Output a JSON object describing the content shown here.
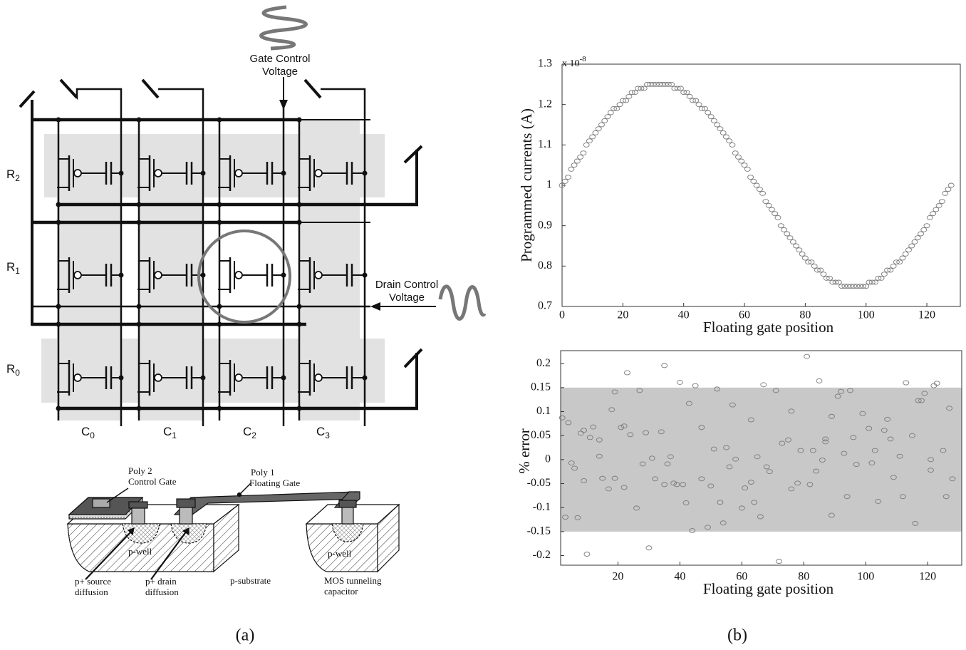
{
  "figure_a": {
    "gate_label": [
      "Gate Control",
      "Voltage"
    ],
    "drain_label": [
      "Drain Control",
      "Voltage"
    ],
    "rows": [
      {
        "name": "R",
        "sub": "2"
      },
      {
        "name": "R",
        "sub": "1"
      },
      {
        "name": "R",
        "sub": "0"
      }
    ],
    "columns": [
      {
        "name": "C",
        "sub": "0"
      },
      {
        "name": "C",
        "sub": "1"
      },
      {
        "name": "C",
        "sub": "2"
      },
      {
        "name": "C",
        "sub": "3"
      }
    ],
    "cross_section": {
      "poly2": [
        "Poly 2",
        "Control Gate"
      ],
      "poly1": [
        "Poly 1",
        "Floating Gate"
      ],
      "wells": [
        "p-well",
        "p-well"
      ],
      "substrate": "p-substrate",
      "source": [
        "p+ source",
        "diffusion"
      ],
      "drain": [
        "p+ drain",
        "diffusion"
      ],
      "capacitor": [
        "MOS tunneling",
        "capacitor"
      ]
    },
    "caption": "(a)"
  },
  "caption_b": "(b)",
  "chart_data": [
    {
      "type": "scatter",
      "ylabel": "Programmed currents (A)",
      "xlabel": "Floating gate position",
      "y_scale_label": {
        "base": "x 10",
        "exponent": "-8"
      },
      "color": "#7a7a7a",
      "xlim": [
        0,
        131
      ],
      "ylim": [
        0.7,
        1.3
      ],
      "xticks": [
        0,
        20,
        40,
        60,
        80,
        100,
        120
      ],
      "yticks": [
        0.7,
        0.8,
        0.9,
        1,
        1.1,
        1.2,
        1.3
      ],
      "x": [
        0,
        1,
        2,
        3,
        4,
        5,
        6,
        7,
        8,
        9,
        10,
        11,
        12,
        13,
        14,
        15,
        16,
        17,
        18,
        19,
        20,
        21,
        22,
        23,
        24,
        25,
        26,
        27,
        28,
        29,
        30,
        31,
        32,
        33,
        34,
        35,
        36,
        37,
        38,
        39,
        40,
        41,
        42,
        43,
        44,
        45,
        46,
        47,
        48,
        49,
        50,
        51,
        52,
        53,
        54,
        55,
        56,
        57,
        58,
        59,
        60,
        61,
        62,
        63,
        64,
        65,
        66,
        67,
        68,
        69,
        70,
        71,
        72,
        73,
        74,
        75,
        76,
        77,
        78,
        79,
        80,
        81,
        82,
        83,
        84,
        85,
        86,
        87,
        88,
        89,
        90,
        91,
        92,
        93,
        94,
        95,
        96,
        97,
        98,
        99,
        100,
        101,
        102,
        103,
        104,
        105,
        106,
        107,
        108,
        109,
        110,
        111,
        112,
        113,
        114,
        115,
        116,
        117,
        118,
        119,
        120,
        121,
        122,
        123,
        124,
        125,
        126,
        127,
        128
      ],
      "values": [
        1.0,
        1.01,
        1.02,
        1.04,
        1.05,
        1.06,
        1.07,
        1.08,
        1.1,
        1.11,
        1.12,
        1.13,
        1.14,
        1.15,
        1.16,
        1.17,
        1.18,
        1.19,
        1.19,
        1.2,
        1.21,
        1.21,
        1.22,
        1.23,
        1.23,
        1.24,
        1.24,
        1.24,
        1.25,
        1.25,
        1.25,
        1.25,
        1.25,
        1.25,
        1.25,
        1.25,
        1.25,
        1.24,
        1.24,
        1.24,
        1.23,
        1.23,
        1.22,
        1.21,
        1.21,
        1.2,
        1.19,
        1.19,
        1.18,
        1.17,
        1.16,
        1.15,
        1.14,
        1.13,
        1.12,
        1.11,
        1.1,
        1.08,
        1.07,
        1.06,
        1.05,
        1.04,
        1.02,
        1.01,
        1.0,
        0.99,
        0.98,
        0.96,
        0.95,
        0.94,
        0.93,
        0.92,
        0.9,
        0.89,
        0.88,
        0.87,
        0.86,
        0.85,
        0.84,
        0.83,
        0.82,
        0.81,
        0.81,
        0.8,
        0.79,
        0.79,
        0.78,
        0.77,
        0.77,
        0.76,
        0.76,
        0.76,
        0.75,
        0.75,
        0.75,
        0.75,
        0.75,
        0.75,
        0.75,
        0.75,
        0.75,
        0.76,
        0.76,
        0.76,
        0.77,
        0.77,
        0.78,
        0.79,
        0.79,
        0.8,
        0.81,
        0.81,
        0.82,
        0.83,
        0.84,
        0.85,
        0.86,
        0.87,
        0.88,
        0.89,
        0.9,
        0.92,
        0.93,
        0.94,
        0.95,
        0.96,
        0.98,
        0.99,
        1.0
      ]
    },
    {
      "type": "scatter",
      "ylabel": "% error",
      "xlabel": "Floating gate position",
      "color": "#7a7a7a",
      "band": [
        -0.15,
        0.15
      ],
      "band_color": "#c8c8c8",
      "xlim": [
        1.5,
        131
      ],
      "ylim": [
        -0.22,
        0.227
      ],
      "xticks": [
        20,
        40,
        60,
        80,
        100,
        120
      ],
      "yticks": [
        -0.2,
        -0.15,
        -0.1,
        -0.05,
        0,
        0.05,
        0.1,
        0.15,
        0.2
      ],
      "x": [
        2,
        4,
        3,
        5,
        6,
        7,
        8,
        9,
        9,
        10,
        11,
        12,
        14,
        14,
        15,
        17,
        18,
        19,
        19,
        21,
        22,
        22,
        23,
        24,
        26,
        27,
        28,
        29,
        30,
        31,
        32,
        34,
        35,
        35,
        36,
        37,
        38,
        39,
        40,
        41,
        42,
        43,
        44,
        45,
        47,
        47,
        49,
        50,
        51,
        52,
        53,
        54,
        55,
        56,
        57,
        58,
        60,
        61,
        63,
        63,
        64,
        65,
        66,
        67,
        68,
        69,
        71,
        72,
        73,
        75,
        76,
        76,
        78,
        79,
        81,
        82,
        83,
        84,
        85,
        86,
        87,
        87,
        89,
        89,
        91,
        92,
        93,
        94,
        95,
        96,
        97,
        99,
        101,
        102,
        103,
        104,
        106,
        107,
        108,
        109,
        111,
        112,
        113,
        115,
        116,
        117,
        118,
        119,
        121,
        121,
        122,
        123,
        125,
        126,
        127,
        128
      ],
      "values": [
        0.087,
        0.077,
        -0.12,
        -0.007,
        -0.018,
        -0.121,
        0.055,
        -0.044,
        0.061,
        -0.197,
        0.046,
        0.068,
        0.007,
        0.041,
        -0.039,
        -0.061,
        0.104,
        -0.039,
        0.141,
        0.067,
        0.07,
        -0.058,
        0.181,
        0.052,
        -0.101,
        0.144,
        -0.009,
        0.056,
        -0.184,
        0.003,
        -0.04,
        0.058,
        -0.052,
        0.196,
        -0.009,
        0.006,
        -0.049,
        -0.052,
        0.161,
        -0.052,
        -0.09,
        0.117,
        -0.148,
        0.154,
        -0.04,
        0.067,
        -0.141,
        -0.055,
        0.022,
        0.147,
        -0.089,
        -0.132,
        0.025,
        -0.015,
        0.114,
        0.001,
        -0.101,
        -0.059,
        -0.047,
        0.083,
        -0.089,
        0.006,
        -0.119,
        0.156,
        -0.015,
        -0.025,
        0.144,
        -0.212,
        0.034,
        0.041,
        0.101,
        -0.061,
        -0.049,
        0.019,
        0.215,
        -0.052,
        0.019,
        -0.024,
        0.164,
        -0.001,
        0.043,
        0.037,
        0.09,
        -0.116,
        0.132,
        0.142,
        0.013,
        -0.077,
        0.144,
        0.046,
        -0.01,
        0.096,
        0.065,
        -0.007,
        0.019,
        -0.087,
        0.061,
        0.084,
        0.043,
        -0.037,
        0.007,
        -0.077,
        0.16,
        0.05,
        -0.133,
        0.123,
        0.123,
        0.138,
        0,
        -0.022,
        0.154,
        0.159,
        0.019,
        -0.077,
        0.107,
        -0.04
      ]
    }
  ]
}
